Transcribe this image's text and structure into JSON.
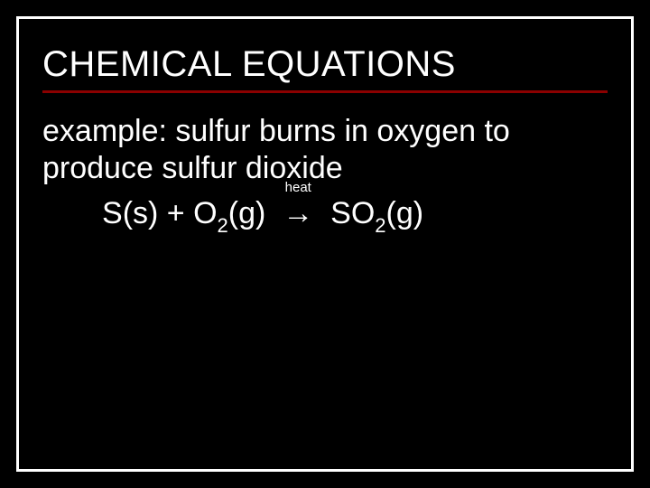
{
  "slide": {
    "background_color": "#000000",
    "border_color": "#ffffff",
    "text_color": "#ffffff",
    "underline_color": "#8b0000",
    "title_fontsize": 40,
    "body_fontsize": 34,
    "sub_fontsize": 22,
    "annotation_fontsize": 15
  },
  "title": "CHEMICAL EQUATIONS",
  "example_text": "example:  sulfur burns in oxygen to produce sulfur dioxide",
  "equation": {
    "r1_species": "S",
    "r1_state": "(s)",
    "plus": "  +  ",
    "r2_species": "O",
    "r2_sub": "2",
    "r2_state": "(g)",
    "arrow_label": "heat",
    "arrow": "→",
    "p1_species": "SO",
    "p1_sub": "2",
    "p1_state": "(g)"
  }
}
